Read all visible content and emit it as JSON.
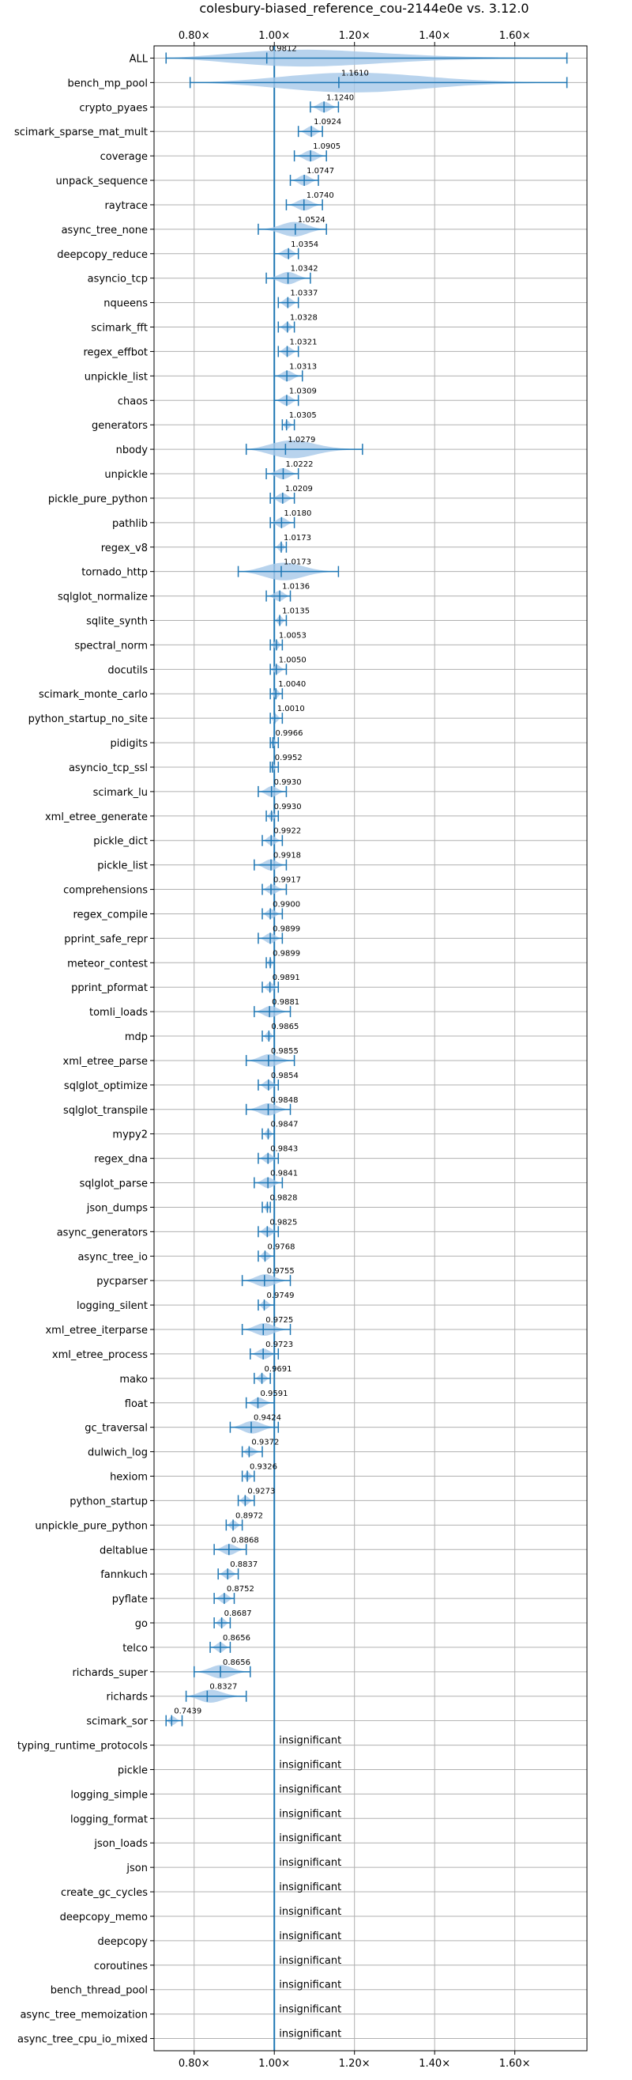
{
  "chart_data": {
    "type": "violin",
    "title": "colesbury-biased_reference_cou-2144e0e vs. 3.12.0",
    "xlabel": "",
    "ylabel": "",
    "xlim": [
      0.7,
      1.78
    ],
    "xticks": [
      0.8,
      1.0,
      1.2,
      1.4,
      1.6
    ],
    "xtick_labels": [
      "0.80×",
      "1.00×",
      "1.20×",
      "1.40×",
      "1.60×"
    ],
    "reference_x": 1.0,
    "grid": true,
    "colors": {
      "violin": "#a6c8e8",
      "line": "#1f77b4",
      "grid": "#b0b0b0"
    },
    "insignificant_text": "insignificant",
    "benchmarks": [
      {
        "name": "ALL",
        "value": 0.9812,
        "label": "0.9812",
        "min": 0.73,
        "max": 1.73
      },
      {
        "name": "bench_mp_pool",
        "value": 1.161,
        "label": "1.1610",
        "min": 0.79,
        "max": 1.73
      },
      {
        "name": "crypto_pyaes",
        "value": 1.124,
        "label": "1.1240",
        "min": 1.09,
        "max": 1.16
      },
      {
        "name": "scimark_sparse_mat_mult",
        "value": 1.0924,
        "label": "1.0924",
        "min": 1.06,
        "max": 1.12
      },
      {
        "name": "coverage",
        "value": 1.0905,
        "label": "1.0905",
        "min": 1.05,
        "max": 1.13
      },
      {
        "name": "unpack_sequence",
        "value": 1.0747,
        "label": "1.0747",
        "min": 1.04,
        "max": 1.11
      },
      {
        "name": "raytrace",
        "value": 1.074,
        "label": "1.0740",
        "min": 1.03,
        "max": 1.12
      },
      {
        "name": "async_tree_none",
        "value": 1.0524,
        "label": "1.0524",
        "min": 0.96,
        "max": 1.13
      },
      {
        "name": "deepcopy_reduce",
        "value": 1.0354,
        "label": "1.0354",
        "min": 1.0,
        "max": 1.06
      },
      {
        "name": "asyncio_tcp",
        "value": 1.0342,
        "label": "1.0342",
        "min": 0.98,
        "max": 1.09
      },
      {
        "name": "nqueens",
        "value": 1.0337,
        "label": "1.0337",
        "min": 1.01,
        "max": 1.06
      },
      {
        "name": "scimark_fft",
        "value": 1.0328,
        "label": "1.0328",
        "min": 1.01,
        "max": 1.05
      },
      {
        "name": "regex_effbot",
        "value": 1.0321,
        "label": "1.0321",
        "min": 1.01,
        "max": 1.06
      },
      {
        "name": "unpickle_list",
        "value": 1.0313,
        "label": "1.0313",
        "min": 1.0,
        "max": 1.07
      },
      {
        "name": "chaos",
        "value": 1.0309,
        "label": "1.0309",
        "min": 1.0,
        "max": 1.06
      },
      {
        "name": "generators",
        "value": 1.0305,
        "label": "1.0305",
        "min": 1.02,
        "max": 1.05
      },
      {
        "name": "nbody",
        "value": 1.0279,
        "label": "1.0279",
        "min": 0.93,
        "max": 1.22
      },
      {
        "name": "unpickle",
        "value": 1.0222,
        "label": "1.0222",
        "min": 0.98,
        "max": 1.06
      },
      {
        "name": "pickle_pure_python",
        "value": 1.0209,
        "label": "1.0209",
        "min": 0.99,
        "max": 1.05
      },
      {
        "name": "pathlib",
        "value": 1.018,
        "label": "1.0180",
        "min": 0.99,
        "max": 1.05
      },
      {
        "name": "regex_v8",
        "value": 1.0173,
        "label": "1.0173",
        "min": 1.0,
        "max": 1.03
      },
      {
        "name": "tornado_http",
        "value": 1.0173,
        "label": "1.0173",
        "min": 0.91,
        "max": 1.16
      },
      {
        "name": "sqlglot_normalize",
        "value": 1.0136,
        "label": "1.0136",
        "min": 0.98,
        "max": 1.04
      },
      {
        "name": "sqlite_synth",
        "value": 1.0135,
        "label": "1.0135",
        "min": 1.0,
        "max": 1.03
      },
      {
        "name": "spectral_norm",
        "value": 1.0053,
        "label": "1.0053",
        "min": 0.99,
        "max": 1.02
      },
      {
        "name": "docutils",
        "value": 1.005,
        "label": "1.0050",
        "min": 0.99,
        "max": 1.03
      },
      {
        "name": "scimark_monte_carlo",
        "value": 1.004,
        "label": "1.0040",
        "min": 0.99,
        "max": 1.02
      },
      {
        "name": "python_startup_no_site",
        "value": 1.001,
        "label": "1.0010",
        "min": 0.99,
        "max": 1.02
      },
      {
        "name": "pidigits",
        "value": 0.9966,
        "label": "0.9966",
        "min": 0.99,
        "max": 1.01
      },
      {
        "name": "asyncio_tcp_ssl",
        "value": 0.9952,
        "label": "0.9952",
        "min": 0.99,
        "max": 1.01
      },
      {
        "name": "scimark_lu",
        "value": 0.993,
        "label": "0.9930",
        "min": 0.96,
        "max": 1.03
      },
      {
        "name": "xml_etree_generate",
        "value": 0.993,
        "label": "0.9930",
        "min": 0.98,
        "max": 1.01
      },
      {
        "name": "pickle_dict",
        "value": 0.9922,
        "label": "0.9922",
        "min": 0.97,
        "max": 1.02
      },
      {
        "name": "pickle_list",
        "value": 0.9918,
        "label": "0.9918",
        "min": 0.95,
        "max": 1.03
      },
      {
        "name": "comprehensions",
        "value": 0.9917,
        "label": "0.9917",
        "min": 0.97,
        "max": 1.03
      },
      {
        "name": "regex_compile",
        "value": 0.99,
        "label": "0.9900",
        "min": 0.97,
        "max": 1.02
      },
      {
        "name": "pprint_safe_repr",
        "value": 0.9899,
        "label": "0.9899",
        "min": 0.96,
        "max": 1.02
      },
      {
        "name": "meteor_contest",
        "value": 0.9899,
        "label": "0.9899",
        "min": 0.98,
        "max": 1.0
      },
      {
        "name": "pprint_pformat",
        "value": 0.9891,
        "label": "0.9891",
        "min": 0.97,
        "max": 1.01
      },
      {
        "name": "tomli_loads",
        "value": 0.9881,
        "label": "0.9881",
        "min": 0.95,
        "max": 1.04
      },
      {
        "name": "mdp",
        "value": 0.9865,
        "label": "0.9865",
        "min": 0.97,
        "max": 1.0
      },
      {
        "name": "xml_etree_parse",
        "value": 0.9855,
        "label": "0.9855",
        "min": 0.93,
        "max": 1.05
      },
      {
        "name": "sqlglot_optimize",
        "value": 0.9854,
        "label": "0.9854",
        "min": 0.96,
        "max": 1.01
      },
      {
        "name": "sqlglot_transpile",
        "value": 0.9848,
        "label": "0.9848",
        "min": 0.93,
        "max": 1.04
      },
      {
        "name": "mypy2",
        "value": 0.9847,
        "label": "0.9847",
        "min": 0.97,
        "max": 1.0
      },
      {
        "name": "regex_dna",
        "value": 0.9843,
        "label": "0.9843",
        "min": 0.96,
        "max": 1.01
      },
      {
        "name": "sqlglot_parse",
        "value": 0.9841,
        "label": "0.9841",
        "min": 0.95,
        "max": 1.02
      },
      {
        "name": "json_dumps",
        "value": 0.9828,
        "label": "0.9828",
        "min": 0.97,
        "max": 0.99
      },
      {
        "name": "async_generators",
        "value": 0.9825,
        "label": "0.9825",
        "min": 0.96,
        "max": 1.01
      },
      {
        "name": "async_tree_io",
        "value": 0.9768,
        "label": "0.9768",
        "min": 0.96,
        "max": 1.0
      },
      {
        "name": "pycparser",
        "value": 0.9755,
        "label": "0.9755",
        "min": 0.92,
        "max": 1.04
      },
      {
        "name": "logging_silent",
        "value": 0.9749,
        "label": "0.9749",
        "min": 0.96,
        "max": 1.0
      },
      {
        "name": "xml_etree_iterparse",
        "value": 0.9725,
        "label": "0.9725",
        "min": 0.92,
        "max": 1.04
      },
      {
        "name": "xml_etree_process",
        "value": 0.9723,
        "label": "0.9723",
        "min": 0.94,
        "max": 1.01
      },
      {
        "name": "mako",
        "value": 0.9691,
        "label": "0.9691",
        "min": 0.95,
        "max": 0.99
      },
      {
        "name": "float",
        "value": 0.9591,
        "label": "0.9591",
        "min": 0.93,
        "max": 1.0
      },
      {
        "name": "gc_traversal",
        "value": 0.9424,
        "label": "0.9424",
        "min": 0.89,
        "max": 1.01
      },
      {
        "name": "dulwich_log",
        "value": 0.9372,
        "label": "0.9372",
        "min": 0.92,
        "max": 0.97
      },
      {
        "name": "hexiom",
        "value": 0.9326,
        "label": "0.9326",
        "min": 0.92,
        "max": 0.95
      },
      {
        "name": "python_startup",
        "value": 0.9273,
        "label": "0.9273",
        "min": 0.91,
        "max": 0.95
      },
      {
        "name": "unpickle_pure_python",
        "value": 0.8972,
        "label": "0.8972",
        "min": 0.88,
        "max": 0.92
      },
      {
        "name": "deltablue",
        "value": 0.8868,
        "label": "0.8868",
        "min": 0.85,
        "max": 0.93
      },
      {
        "name": "fannkuch",
        "value": 0.8837,
        "label": "0.8837",
        "min": 0.86,
        "max": 0.91
      },
      {
        "name": "pyflate",
        "value": 0.8752,
        "label": "0.8752",
        "min": 0.85,
        "max": 0.9
      },
      {
        "name": "go",
        "value": 0.8687,
        "label": "0.8687",
        "min": 0.85,
        "max": 0.89
      },
      {
        "name": "telco",
        "value": 0.8656,
        "label": "0.8656",
        "min": 0.84,
        "max": 0.89
      },
      {
        "name": "richards_super",
        "value": 0.8656,
        "label": "0.8656",
        "min": 0.8,
        "max": 0.94
      },
      {
        "name": "richards",
        "value": 0.8327,
        "label": "0.8327",
        "min": 0.78,
        "max": 0.93
      },
      {
        "name": "scimark_sor",
        "value": 0.7439,
        "label": "0.7439",
        "min": 0.73,
        "max": 0.77
      },
      {
        "name": "typing_runtime_protocols",
        "insignificant": true
      },
      {
        "name": "pickle",
        "insignificant": true
      },
      {
        "name": "logging_simple",
        "insignificant": true
      },
      {
        "name": "logging_format",
        "insignificant": true
      },
      {
        "name": "json_loads",
        "insignificant": true
      },
      {
        "name": "json",
        "insignificant": true
      },
      {
        "name": "create_gc_cycles",
        "insignificant": true
      },
      {
        "name": "deepcopy_memo",
        "insignificant": true
      },
      {
        "name": "deepcopy",
        "insignificant": true
      },
      {
        "name": "coroutines",
        "insignificant": true
      },
      {
        "name": "bench_thread_pool",
        "insignificant": true
      },
      {
        "name": "async_tree_memoization",
        "insignificant": true
      },
      {
        "name": "async_tree_cpu_io_mixed",
        "insignificant": true
      }
    ]
  }
}
